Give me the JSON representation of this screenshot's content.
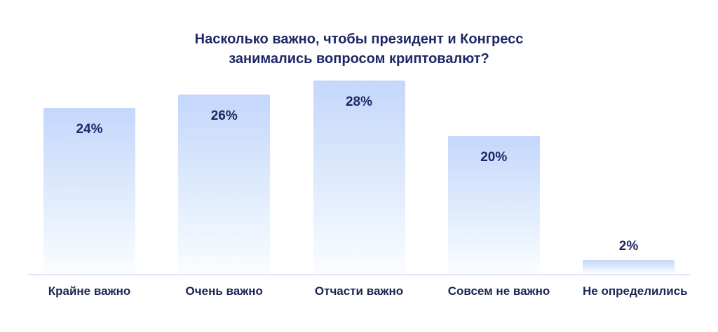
{
  "chart_data": {
    "type": "bar",
    "title": "Насколько важно, чтобы президент и Конгресс занимались вопросом криптовалют?",
    "categories": [
      "Крайне важно",
      "Очень важно",
      "Отчасти важно",
      "Совсем не важно",
      "Не определились"
    ],
    "values": [
      24,
      26,
      28,
      20,
      2
    ],
    "value_labels": [
      "24%",
      "26%",
      "28%",
      "20%",
      "2%"
    ],
    "xlabel": "",
    "ylabel": "",
    "ylim": [
      0,
      28.5
    ],
    "grid": false,
    "legend": false,
    "colors": {
      "bar_gradient_top": "#c4d7fb",
      "bar_gradient_bottom": "#fbfdff",
      "title_text": "#1d2866",
      "value_text": "#1d2866",
      "category_text": "#1c2552",
      "baseline": "#dde5f3",
      "background": "#ffffff"
    }
  }
}
